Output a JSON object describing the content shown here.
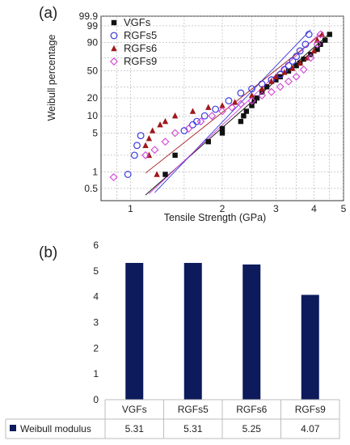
{
  "chart_data": [
    {
      "panel": "(a)",
      "type": "scatter",
      "xlabel": "Tensile Strength (GPa)",
      "ylabel": "Weibull percentage",
      "xscale": "log",
      "yscale": "weibull",
      "xlim": [
        0.8,
        5
      ],
      "ylim": [
        0.3,
        99.9
      ],
      "x_ticks": [
        "1",
        "2",
        "3",
        "4",
        "5"
      ],
      "x_tick_values": [
        1,
        2,
        3,
        4,
        5
      ],
      "y_ticks": [
        "0.5",
        "1",
        "5",
        "10",
        "20",
        "50",
        "90",
        "99",
        "99.9"
      ],
      "y_tick_values": [
        0.5,
        1,
        5,
        10,
        20,
        50,
        90,
        99,
        99.9
      ],
      "grid": true,
      "legend_position": "top-left",
      "series": [
        {
          "name": "VGFs",
          "marker": "filled-square",
          "color": "#111111",
          "points": [
            [
              1.3,
              0.9
            ],
            [
              1.4,
              2
            ],
            [
              1.8,
              3.5
            ],
            [
              2.0,
              6
            ],
            [
              2.0,
              5
            ],
            [
              2.3,
              8
            ],
            [
              2.35,
              10
            ],
            [
              2.4,
              12
            ],
            [
              2.5,
              15
            ],
            [
              2.55,
              18
            ],
            [
              2.6,
              20
            ],
            [
              2.7,
              25
            ],
            [
              2.8,
              30
            ],
            [
              3.0,
              38
            ],
            [
              3.1,
              42
            ],
            [
              3.3,
              50
            ],
            [
              3.5,
              58
            ],
            [
              3.6,
              62
            ],
            [
              3.7,
              68
            ],
            [
              3.9,
              75
            ],
            [
              4.1,
              82
            ],
            [
              4.2,
              88
            ],
            [
              4.35,
              92
            ],
            [
              4.5,
              96
            ]
          ],
          "fit": [
            [
              1.12,
              0.38
            ],
            [
              4.55,
              97
            ]
          ]
        },
        {
          "name": "RGFs5",
          "marker": "open-circle",
          "color": "#3a3adf",
          "points": [
            [
              0.98,
              0.9
            ],
            [
              1.03,
              2
            ],
            [
              1.05,
              3
            ],
            [
              1.08,
              4.5
            ],
            [
              1.5,
              5.5
            ],
            [
              1.6,
              7
            ],
            [
              1.65,
              8
            ],
            [
              1.75,
              10
            ],
            [
              1.9,
              13
            ],
            [
              2.1,
              18
            ],
            [
              2.3,
              24
            ],
            [
              2.5,
              28
            ],
            [
              2.7,
              33
            ],
            [
              2.9,
              38
            ],
            [
              3.1,
              45
            ],
            [
              3.2,
              52
            ],
            [
              3.3,
              58
            ],
            [
              3.4,
              65
            ],
            [
              3.5,
              72
            ],
            [
              3.6,
              80
            ],
            [
              3.75,
              88
            ],
            [
              3.85,
              96
            ]
          ],
          "fit": [
            [
              1.2,
              0.42
            ],
            [
              3.9,
              98
            ]
          ]
        },
        {
          "name": "RGFs6",
          "marker": "filled-triangle",
          "color": "#a01818",
          "points": [
            [
              1.22,
              0.9
            ],
            [
              1.15,
              2
            ],
            [
              1.12,
              3
            ],
            [
              1.15,
              4
            ],
            [
              1.18,
              5.5
            ],
            [
              1.25,
              7
            ],
            [
              1.3,
              8
            ],
            [
              1.4,
              10
            ],
            [
              1.6,
              12
            ],
            [
              1.8,
              14
            ],
            [
              2.0,
              15
            ],
            [
              2.2,
              17
            ],
            [
              2.5,
              22
            ],
            [
              2.7,
              28
            ],
            [
              2.9,
              36
            ],
            [
              3.0,
              42
            ],
            [
              3.2,
              48
            ],
            [
              3.4,
              54
            ],
            [
              3.6,
              62
            ],
            [
              3.8,
              70
            ],
            [
              4.0,
              80
            ],
            [
              4.1,
              92
            ],
            [
              4.25,
              96
            ]
          ],
          "fit": [
            [
              1.12,
              0.95
            ],
            [
              4.3,
              97
            ]
          ]
        },
        {
          "name": "RGFs9",
          "marker": "open-diamond",
          "color": "#d444d4",
          "points": [
            [
              0.88,
              0.8
            ],
            [
              1.12,
              2
            ],
            [
              1.2,
              2.5
            ],
            [
              1.3,
              3.5
            ],
            [
              1.4,
              5
            ],
            [
              1.55,
              6
            ],
            [
              1.7,
              8
            ],
            [
              1.85,
              10
            ],
            [
              2.0,
              12
            ],
            [
              2.15,
              14
            ],
            [
              2.3,
              16
            ],
            [
              2.5,
              18
            ],
            [
              2.7,
              22
            ],
            [
              2.9,
              25
            ],
            [
              3.1,
              30
            ],
            [
              3.3,
              36
            ],
            [
              3.5,
              42
            ],
            [
              3.7,
              52
            ],
            [
              3.9,
              70
            ],
            [
              4.1,
              88
            ],
            [
              4.2,
              96
            ]
          ],
          "fit": [
            [
              1.15,
              0.4
            ],
            [
              4.15,
              96
            ]
          ]
        }
      ]
    },
    {
      "panel": "(b)",
      "type": "bar",
      "categories": [
        "VGFs",
        "RGFs5",
        "RGFs6",
        "RGFs9"
      ],
      "series": [
        {
          "name": "Weibull modulus",
          "color": "#0d1a5c",
          "values": [
            5.31,
            5.31,
            5.25,
            4.07
          ]
        }
      ],
      "ylim": [
        0,
        6
      ],
      "y_ticks": [
        "0",
        "1",
        "2",
        "3",
        "4",
        "5",
        "6"
      ],
      "data_table": {
        "row_label": "Weibull modulus",
        "values": [
          "5.31",
          "5.31",
          "5.25",
          "4.07"
        ]
      }
    }
  ]
}
